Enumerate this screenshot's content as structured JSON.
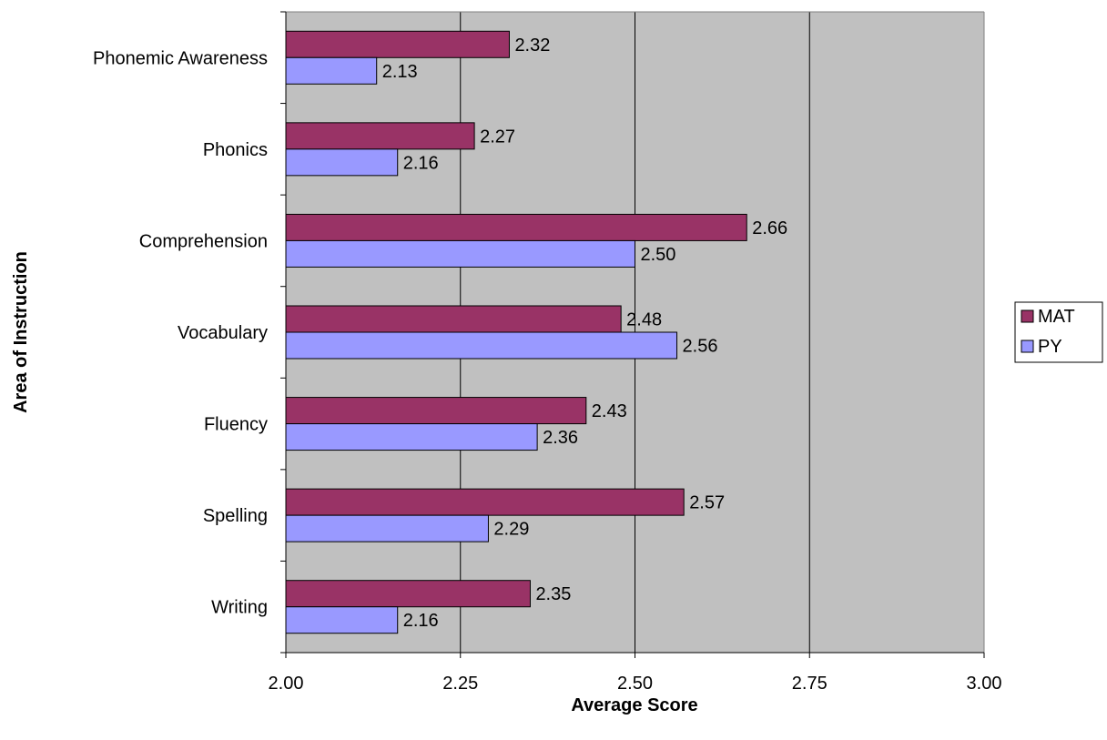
{
  "chart_data": {
    "type": "bar",
    "orientation": "horizontal",
    "title": "",
    "xlabel": "Average Score",
    "ylabel": "Area of Instruction",
    "xlim": [
      2.0,
      3.0
    ],
    "xticks": [
      "2.00",
      "2.25",
      "2.50",
      "2.75",
      "3.00"
    ],
    "categories": [
      "Phonemic Awareness",
      "Phonics",
      "Comprehension",
      "Vocabulary",
      "Fluency",
      "Spelling",
      "Writing"
    ],
    "series": [
      {
        "name": "MAT",
        "color": "#993366",
        "values": [
          2.32,
          2.27,
          2.66,
          2.48,
          2.43,
          2.57,
          2.35
        ],
        "labels": [
          "2.32",
          "2.27",
          "2.66",
          "2.48",
          "2.43",
          "2.57",
          "2.35"
        ]
      },
      {
        "name": "PY",
        "color": "#9999ff",
        "values": [
          2.13,
          2.16,
          2.5,
          2.56,
          2.36,
          2.29,
          2.16
        ],
        "labels": [
          "2.13",
          "2.16",
          "2.50",
          "2.56",
          "2.36",
          "2.29",
          "2.16"
        ]
      }
    ],
    "plot_background": "#c0c0c0",
    "grid": true,
    "legend_position": "right"
  }
}
